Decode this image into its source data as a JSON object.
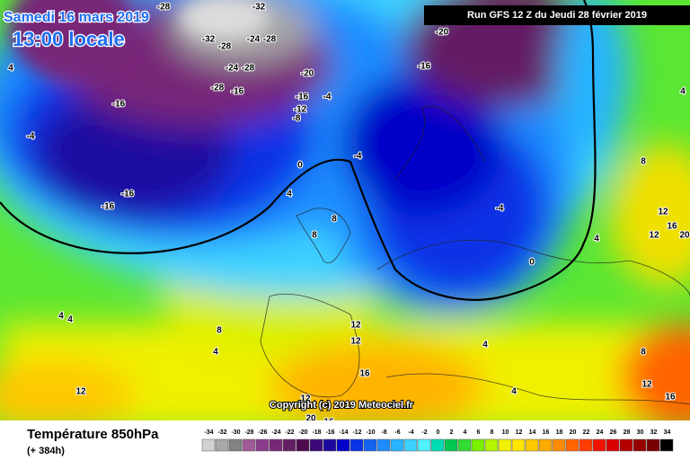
{
  "header": {
    "date": "Samedi 16 mars 2019",
    "time": "13:00 locale",
    "run": "Run GFS 12 Z du Jeudi 28 février 2019"
  },
  "copyright": "Copyright (c) 2019 Meteociel.fr",
  "footer": {
    "title": "Température 850hPa",
    "lead": "(+ 384h)"
  },
  "map": {
    "contour_labels": [
      -28,
      -32,
      -32,
      -28,
      -24,
      -28,
      -24,
      -28,
      -28,
      -16,
      -20,
      -16,
      -4,
      -12,
      -8,
      -20,
      -16,
      -16,
      -4,
      -16,
      -16,
      0,
      -4,
      4,
      8,
      8,
      -4,
      0,
      4,
      8,
      12,
      16,
      20,
      12,
      4,
      4,
      4,
      8,
      4,
      12,
      12,
      16,
      12,
      4,
      12,
      16,
      12,
      20,
      16,
      4,
      8,
      4
    ]
  },
  "legend": {
    "ticks": [
      -34,
      -32,
      -30,
      -28,
      -26,
      -24,
      -22,
      -20,
      -18,
      -16,
      -14,
      -12,
      -10,
      -8,
      -6,
      -4,
      -2,
      0,
      2,
      4,
      6,
      8,
      10,
      12,
      14,
      16,
      18,
      20,
      22,
      24,
      26,
      28,
      30,
      32,
      34
    ],
    "colors": [
      "#d2d2d2",
      "#a8a8a8",
      "#828282",
      "#a05a96",
      "#8c3c8c",
      "#782878",
      "#641e64",
      "#500a50",
      "#3c0a78",
      "#1e0aa0",
      "#0000c8",
      "#0a32e6",
      "#1464f0",
      "#1e8cff",
      "#28b4ff",
      "#3cd2ff",
      "#50f0ff",
      "#00dcb4",
      "#00c850",
      "#32dc32",
      "#78f000",
      "#b4f500",
      "#f0f000",
      "#ffe600",
      "#ffc800",
      "#ffaa00",
      "#ff8c00",
      "#ff6400",
      "#ff3c00",
      "#f01400",
      "#dc0000",
      "#b40000",
      "#960000",
      "#780000",
      "#000000"
    ]
  }
}
